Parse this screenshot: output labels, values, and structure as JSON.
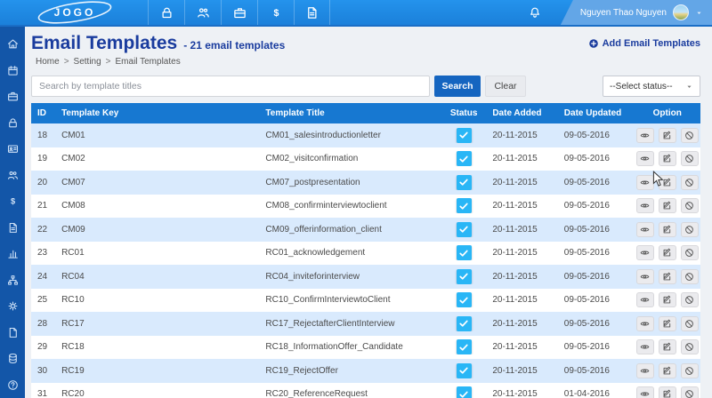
{
  "colors": {
    "topbar": "#1e88e5",
    "topbar_user_section": "#63a6e7",
    "sidebar": "#1356a8",
    "page_background": "#eef1f5",
    "accent_navy": "#1a3c9e",
    "table_header": "#1778d1",
    "row_alternate": "#d9eafd",
    "status_checkbox": "#29b6f6",
    "search_button": "#1565c0"
  },
  "topbar": {
    "logo_text": "JOGO",
    "nav_items": [
      {
        "icon": "lock"
      },
      {
        "icon": "users"
      },
      {
        "icon": "briefcase"
      },
      {
        "icon": "dollar"
      },
      {
        "icon": "file-text"
      }
    ],
    "user_name": "Nguyen Thao Nguyen"
  },
  "sidebar": {
    "items": [
      {
        "icon": "home"
      },
      {
        "icon": "calendar"
      },
      {
        "icon": "briefcase"
      },
      {
        "icon": "lock"
      },
      {
        "icon": "id-card"
      },
      {
        "icon": "users"
      },
      {
        "icon": "dollar"
      },
      {
        "icon": "file-text"
      },
      {
        "icon": "bar-chart"
      },
      {
        "icon": "sitemap"
      },
      {
        "icon": "gears"
      },
      {
        "icon": "file"
      },
      {
        "icon": "database"
      },
      {
        "icon": "help"
      }
    ]
  },
  "page": {
    "title": "Email Templates",
    "subtitle": "- 21 email templates",
    "breadcrumb": [
      "Home",
      "Setting",
      "Email Templates"
    ],
    "breadcrumb_separator": ">",
    "add_button": "Add Email Templates"
  },
  "filters": {
    "search_placeholder": "Search by template titles",
    "search_button": "Search",
    "clear_button": "Clear",
    "status_select_value": "--Select status--"
  },
  "table": {
    "columns": [
      "ID",
      "Template Key",
      "Template Title",
      "Status",
      "Date Added",
      "Date Updated",
      "Option"
    ],
    "rows": [
      {
        "id": "18",
        "key": "CM01",
        "title": "CM01_salesintroductionletter",
        "status_checked": true,
        "date_added": "20-11-2015",
        "date_updated": "09-05-2016"
      },
      {
        "id": "19",
        "key": "CM02",
        "title": "CM02_visitconfirmation",
        "status_checked": true,
        "date_added": "20-11-2015",
        "date_updated": "09-05-2016"
      },
      {
        "id": "20",
        "key": "CM07",
        "title": "CM07_postpresentation",
        "status_checked": true,
        "date_added": "20-11-2015",
        "date_updated": "09-05-2016"
      },
      {
        "id": "21",
        "key": "CM08",
        "title": "CM08_confirminterviewtoclient",
        "status_checked": true,
        "date_added": "20-11-2015",
        "date_updated": "09-05-2016"
      },
      {
        "id": "22",
        "key": "CM09",
        "title": "CM09_offerinformation_client",
        "status_checked": true,
        "date_added": "20-11-2015",
        "date_updated": "09-05-2016"
      },
      {
        "id": "23",
        "key": "RC01",
        "title": "RC01_acknowledgement",
        "status_checked": true,
        "date_added": "20-11-2015",
        "date_updated": "09-05-2016"
      },
      {
        "id": "24",
        "key": "RC04",
        "title": "RC04_inviteforinterview",
        "status_checked": true,
        "date_added": "20-11-2015",
        "date_updated": "09-05-2016"
      },
      {
        "id": "25",
        "key": "RC10",
        "title": "RC10_ConfirmInterviewtoClient",
        "status_checked": true,
        "date_added": "20-11-2015",
        "date_updated": "09-05-2016"
      },
      {
        "id": "28",
        "key": "RC17",
        "title": "RC17_RejectafterClientInterview",
        "status_checked": true,
        "date_added": "20-11-2015",
        "date_updated": "09-05-2016"
      },
      {
        "id": "29",
        "key": "RC18",
        "title": "RC18_InformationOffer_Candidate",
        "status_checked": true,
        "date_added": "20-11-2015",
        "date_updated": "09-05-2016"
      },
      {
        "id": "30",
        "key": "RC19",
        "title": "RC19_RejectOffer",
        "status_checked": true,
        "date_added": "20-11-2015",
        "date_updated": "09-05-2016"
      },
      {
        "id": "31",
        "key": "RC20",
        "title": "RC20_ReferenceRequest",
        "status_checked": true,
        "date_added": "20-11-2015",
        "date_updated": "01-04-2016"
      }
    ]
  }
}
